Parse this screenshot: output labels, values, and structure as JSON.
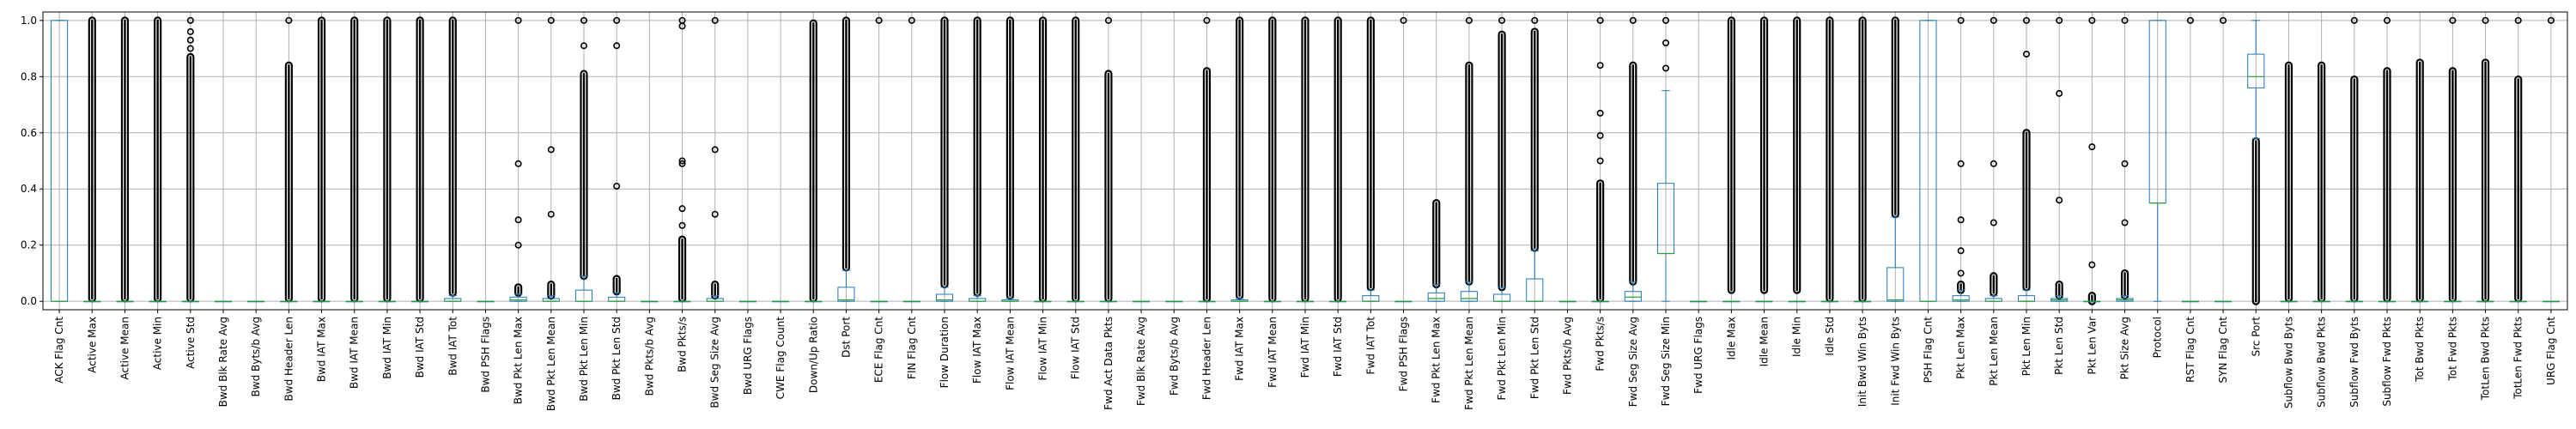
{
  "chart_data": {
    "type": "boxplot",
    "title": "",
    "xlabel": "",
    "ylabel": "",
    "ylim": [
      -0.03,
      1.03
    ],
    "yticks": [
      "0.0",
      "0.2",
      "0.4",
      "0.6",
      "0.8",
      "1.0"
    ],
    "ytick_values": [
      0.0,
      0.2,
      0.4,
      0.6,
      0.8,
      1.0
    ],
    "grid": true,
    "colors": {
      "box": "#1f77b4",
      "median": "#2ca02c",
      "outlier": "#000000",
      "grid": "#b0b0b0"
    },
    "boxes": [
      {
        "label": "ACK Flag Cnt",
        "q1": 0,
        "q3": 1,
        "med": 0,
        "wlo": 0,
        "whi": 1
      },
      {
        "label": "Active Max",
        "q1": 0,
        "q3": 0,
        "med": 0,
        "wlo": 0,
        "whi": 0,
        "band": [
          0.01,
          1.0
        ]
      },
      {
        "label": "Active Mean",
        "q1": 0,
        "q3": 0,
        "med": 0,
        "wlo": 0,
        "whi": 0,
        "band": [
          0.01,
          1.0
        ]
      },
      {
        "label": "Active Min",
        "q1": 0,
        "q3": 0,
        "med": 0,
        "wlo": 0,
        "whi": 0,
        "band": [
          0.01,
          1.0
        ]
      },
      {
        "label": "Active Std",
        "q1": 0,
        "q3": 0,
        "med": 0,
        "wlo": 0,
        "whi": 0,
        "band": [
          0.01,
          0.87
        ],
        "points": [
          0.9,
          0.93,
          0.96,
          1.0
        ]
      },
      {
        "label": "Bwd Blk Rate Avg",
        "q1": 0,
        "q3": 0,
        "med": 0,
        "wlo": 0,
        "whi": 0
      },
      {
        "label": "Bwd Byts/b Avg",
        "q1": 0,
        "q3": 0,
        "med": 0,
        "wlo": 0,
        "whi": 0
      },
      {
        "label": "Bwd Header Len",
        "q1": 0,
        "q3": 0,
        "med": 0,
        "wlo": 0,
        "whi": 0,
        "band": [
          0.01,
          0.84
        ],
        "points": [
          1.0
        ]
      },
      {
        "label": "Bwd IAT Max",
        "q1": 0,
        "q3": 0,
        "med": 0,
        "wlo": 0,
        "whi": 0,
        "band": [
          0.01,
          1.0
        ]
      },
      {
        "label": "Bwd IAT Mean",
        "q1": 0,
        "q3": 0,
        "med": 0,
        "wlo": 0,
        "whi": 0,
        "band": [
          0.01,
          1.0
        ]
      },
      {
        "label": "Bwd IAT Min",
        "q1": 0,
        "q3": 0,
        "med": 0,
        "wlo": 0,
        "whi": 0,
        "band": [
          0.01,
          1.0
        ]
      },
      {
        "label": "Bwd IAT Std",
        "q1": 0,
        "q3": 0,
        "med": 0,
        "wlo": 0,
        "whi": 0,
        "band": [
          0.01,
          1.0
        ]
      },
      {
        "label": "Bwd IAT Tot",
        "q1": 0,
        "q3": 0.01,
        "med": 0,
        "wlo": 0,
        "whi": 0.02,
        "band": [
          0.03,
          1.0
        ]
      },
      {
        "label": "Bwd PSH Flags",
        "q1": 0,
        "q3": 0,
        "med": 0,
        "wlo": 0,
        "whi": 0
      },
      {
        "label": "Bwd Pkt Len Max",
        "q1": 0,
        "q3": 0.015,
        "med": 0.005,
        "wlo": 0,
        "whi": 0.025,
        "band": [
          0.03,
          0.05
        ],
        "points": [
          0.2,
          0.29,
          0.49,
          1.0
        ]
      },
      {
        "label": "Bwd Pkt Len Mean",
        "q1": 0,
        "q3": 0.01,
        "med": 0,
        "wlo": 0,
        "whi": 0.02,
        "band": [
          0.02,
          0.06
        ],
        "points": [
          0.31,
          0.54,
          1.0
        ]
      },
      {
        "label": "Bwd Pkt Len Min",
        "q1": 0,
        "q3": 0.04,
        "med": 0,
        "wlo": 0,
        "whi": 0.09,
        "band": [
          0.09,
          0.81
        ],
        "points": [
          0.91,
          1.0
        ]
      },
      {
        "label": "Bwd Pkt Len Std",
        "q1": 0,
        "q3": 0.015,
        "med": 0,
        "wlo": 0,
        "whi": 0.03,
        "band": [
          0.035,
          0.08
        ],
        "points": [
          0.41,
          0.91,
          1.0
        ]
      },
      {
        "label": "Bwd Pkts/b Avg",
        "q1": 0,
        "q3": 0,
        "med": 0,
        "wlo": 0,
        "whi": 0
      },
      {
        "label": "Bwd Pkts/s",
        "q1": 0,
        "q3": 0,
        "med": 0,
        "wlo": 0,
        "whi": 0,
        "band": [
          0.01,
          0.22
        ],
        "points": [
          0.27,
          0.33,
          0.49,
          0.5,
          0.98,
          1.0
        ]
      },
      {
        "label": "Bwd Seg Size Avg",
        "q1": 0,
        "q3": 0.01,
        "med": 0,
        "wlo": 0,
        "whi": 0.02,
        "band": [
          0.02,
          0.06
        ],
        "points": [
          0.31,
          0.54,
          1.0
        ]
      },
      {
        "label": "Bwd URG Flags",
        "q1": 0,
        "q3": 0,
        "med": 0,
        "wlo": 0,
        "whi": 0
      },
      {
        "label": "CWE Flag Count",
        "q1": 0,
        "q3": 0,
        "med": 0,
        "wlo": 0,
        "whi": 0
      },
      {
        "label": "Down/Up Ratio",
        "q1": 0,
        "q3": 0,
        "med": 0,
        "wlo": 0,
        "whi": 0,
        "band": [
          0.01,
          0.99
        ]
      },
      {
        "label": "Dst Port",
        "q1": 0,
        "q3": 0.05,
        "med": 0.005,
        "wlo": 0,
        "whi": 0.11,
        "band": [
          0.12,
          1.0
        ]
      },
      {
        "label": "ECE Flag Cnt",
        "q1": 0,
        "q3": 0,
        "med": 0,
        "wlo": 0,
        "whi": 0,
        "points": [
          1.0
        ]
      },
      {
        "label": "FIN Flag Cnt",
        "q1": 0,
        "q3": 0,
        "med": 0,
        "wlo": 0,
        "whi": 0,
        "points": [
          1.0
        ]
      },
      {
        "label": "Flow Duration",
        "q1": 0,
        "q3": 0.025,
        "med": 0.005,
        "wlo": 0,
        "whi": 0.05,
        "band": [
          0.06,
          1.0
        ]
      },
      {
        "label": "Flow IAT Max",
        "q1": 0,
        "q3": 0.01,
        "med": 0,
        "wlo": 0,
        "whi": 0.02,
        "band": [
          0.03,
          1.0
        ]
      },
      {
        "label": "Flow IAT Mean",
        "q1": 0,
        "q3": 0.005,
        "med": 0,
        "wlo": 0,
        "whi": 0.01,
        "band": [
          0.02,
          1.0
        ]
      },
      {
        "label": "Flow IAT Min",
        "q1": 0,
        "q3": 0,
        "med": 0,
        "wlo": 0,
        "whi": 0,
        "band": [
          0.01,
          1.0
        ]
      },
      {
        "label": "Flow IAT Std",
        "q1": 0,
        "q3": 0,
        "med": 0,
        "wlo": 0,
        "whi": 0,
        "band": [
          0.01,
          1.0
        ]
      },
      {
        "label": "Fwd Act Data Pkts",
        "q1": 0,
        "q3": 0,
        "med": 0,
        "wlo": 0,
        "whi": 0,
        "band": [
          0.01,
          0.81
        ],
        "points": [
          1.0
        ]
      },
      {
        "label": "Fwd Blk Rate Avg",
        "q1": 0,
        "q3": 0,
        "med": 0,
        "wlo": 0,
        "whi": 0
      },
      {
        "label": "Fwd Byts/b Avg",
        "q1": 0,
        "q3": 0,
        "med": 0,
        "wlo": 0,
        "whi": 0
      },
      {
        "label": "Fwd Header Len",
        "q1": 0,
        "q3": 0,
        "med": 0,
        "wlo": 0,
        "whi": 0,
        "band": [
          0.01,
          0.82
        ],
        "points": [
          1.0
        ]
      },
      {
        "label": "Fwd IAT Max",
        "q1": 0,
        "q3": 0.005,
        "med": 0,
        "wlo": 0,
        "whi": 0.01,
        "band": [
          0.02,
          1.0
        ]
      },
      {
        "label": "Fwd IAT Mean",
        "q1": 0,
        "q3": 0,
        "med": 0,
        "wlo": 0,
        "whi": 0,
        "band": [
          0.01,
          1.0
        ]
      },
      {
        "label": "Fwd IAT Min",
        "q1": 0,
        "q3": 0,
        "med": 0,
        "wlo": 0,
        "whi": 0,
        "band": [
          0.01,
          1.0
        ]
      },
      {
        "label": "Fwd IAT Std",
        "q1": 0,
        "q3": 0,
        "med": 0,
        "wlo": 0,
        "whi": 0,
        "band": [
          0.01,
          1.0
        ]
      },
      {
        "label": "Fwd IAT Tot",
        "q1": 0,
        "q3": 0.02,
        "med": 0,
        "wlo": 0,
        "whi": 0.04,
        "band": [
          0.05,
          1.0
        ]
      },
      {
        "label": "Fwd PSH Flags",
        "q1": 0,
        "q3": 0,
        "med": 0,
        "wlo": 0,
        "whi": 0,
        "points": [
          1.0
        ]
      },
      {
        "label": "Fwd Pkt Len Max",
        "q1": 0,
        "q3": 0.03,
        "med": 0.01,
        "wlo": 0,
        "whi": 0.06,
        "band": [
          0.06,
          0.35
        ]
      },
      {
        "label": "Fwd Pkt Len Mean",
        "q1": 0,
        "q3": 0.035,
        "med": 0.01,
        "wlo": 0,
        "whi": 0.07,
        "band": [
          0.07,
          0.84
        ],
        "points": [
          1.0
        ]
      },
      {
        "label": "Fwd Pkt Len Min",
        "q1": 0,
        "q3": 0.025,
        "med": 0,
        "wlo": 0,
        "whi": 0.05,
        "band": [
          0.05,
          0.95
        ],
        "points": [
          1.0
        ]
      },
      {
        "label": "Fwd Pkt Len Std",
        "q1": 0,
        "q3": 0.08,
        "med": 0,
        "wlo": 0,
        "whi": 0.18,
        "band": [
          0.19,
          0.96
        ],
        "points": [
          1.0
        ]
      },
      {
        "label": "Fwd Pkts/b Avg",
        "q1": 0,
        "q3": 0,
        "med": 0,
        "wlo": 0,
        "whi": 0
      },
      {
        "label": "Fwd Pkts/s",
        "q1": 0,
        "q3": 0,
        "med": 0,
        "wlo": 0,
        "whi": 0,
        "band": [
          0.01,
          0.42
        ],
        "points": [
          0.5,
          0.59,
          0.67,
          0.84,
          1.0
        ]
      },
      {
        "label": "Fwd Seg Size Avg",
        "q1": 0,
        "q3": 0.035,
        "med": 0.015,
        "wlo": 0,
        "whi": 0.07,
        "band": [
          0.07,
          0.84
        ],
        "points": [
          1.0
        ]
      },
      {
        "label": "Fwd Seg Size Min",
        "q1": 0.17,
        "q3": 0.42,
        "med": 0.17,
        "wlo": 0,
        "whi": 0.75,
        "points": [
          0.83,
          0.92,
          1.0
        ]
      },
      {
        "label": "Fwd URG Flags",
        "q1": 0,
        "q3": 0,
        "med": 0,
        "wlo": 0,
        "whi": 0
      },
      {
        "label": "Idle Max",
        "q1": 0,
        "q3": 0,
        "med": 0,
        "wlo": 0,
        "whi": 0,
        "band": [
          0.04,
          1.0
        ]
      },
      {
        "label": "Idle Mean",
        "q1": 0,
        "q3": 0,
        "med": 0,
        "wlo": 0,
        "whi": 0,
        "band": [
          0.04,
          1.0
        ]
      },
      {
        "label": "Idle Min",
        "q1": 0,
        "q3": 0,
        "med": 0,
        "wlo": 0,
        "whi": 0,
        "band": [
          0.04,
          1.0
        ]
      },
      {
        "label": "Idle Std",
        "q1": 0,
        "q3": 0,
        "med": 0,
        "wlo": 0,
        "whi": 0,
        "band": [
          0.01,
          1.0
        ]
      },
      {
        "label": "Init Bwd Win Byts",
        "q1": 0,
        "q3": 0,
        "med": 0,
        "wlo": 0,
        "whi": 0,
        "band": [
          0.01,
          1.0
        ]
      },
      {
        "label": "Init Fwd Win Byts",
        "q1": 0,
        "q3": 0.12,
        "med": 0.005,
        "wlo": 0,
        "whi": 0.3,
        "band": [
          0.31,
          1.0
        ]
      },
      {
        "label": "PSH Flag Cnt",
        "q1": 0,
        "q3": 1,
        "med": 0,
        "wlo": 0,
        "whi": 1
      },
      {
        "label": "Pkt Len Max",
        "q1": 0,
        "q3": 0.02,
        "med": 0.005,
        "wlo": 0,
        "whi": 0.04,
        "band": [
          0.04,
          0.06
        ],
        "points": [
          0.1,
          0.18,
          0.29,
          0.49,
          1.0
        ]
      },
      {
        "label": "Pkt Len Mean",
        "q1": 0,
        "q3": 0.01,
        "med": 0,
        "wlo": 0,
        "whi": 0.02,
        "band": [
          0.03,
          0.09
        ],
        "points": [
          0.28,
          0.49,
          1.0
        ]
      },
      {
        "label": "Pkt Len Min",
        "q1": 0,
        "q3": 0.02,
        "med": 0,
        "wlo": 0,
        "whi": 0.04,
        "band": [
          0.05,
          0.6
        ],
        "points": [
          0.88,
          1.0
        ]
      },
      {
        "label": "Pkt Len Std",
        "q1": 0,
        "q3": 0.01,
        "med": 0.005,
        "wlo": 0,
        "whi": 0.02,
        "band": [
          0.02,
          0.06
        ],
        "points": [
          0.36,
          0.74,
          1.0
        ]
      },
      {
        "label": "Pkt Len Var",
        "q1": 0,
        "q3": 0,
        "med": 0,
        "wlo": 0,
        "whi": 0,
        "band": [
          0.0,
          0.02
        ],
        "points": [
          0.13,
          0.55,
          1.0
        ]
      },
      {
        "label": "Pkt Size Avg",
        "q1": 0,
        "q3": 0.01,
        "med": 0.005,
        "wlo": 0,
        "whi": 0.02,
        "band": [
          0.02,
          0.1
        ],
        "points": [
          0.28,
          0.49,
          1.0
        ]
      },
      {
        "label": "Protocol",
        "q1": 0.35,
        "q3": 1.0,
        "med": 0.35,
        "wlo": 0,
        "whi": 1.0
      },
      {
        "label": "RST Flag Cnt",
        "q1": 0,
        "q3": 0,
        "med": 0,
        "wlo": 0,
        "whi": 0,
        "points": [
          1.0
        ]
      },
      {
        "label": "SYN Flag Cnt",
        "q1": 0,
        "q3": 0,
        "med": 0,
        "wlo": 0,
        "whi": 0,
        "points": [
          1.0
        ]
      },
      {
        "label": "Src Port",
        "q1": 0.76,
        "q3": 0.88,
        "med": 0.8,
        "wlo": 0.58,
        "whi": 1.0,
        "band": [
          0.0,
          0.57
        ]
      },
      {
        "label": "Subflow Bwd Byts",
        "q1": 0,
        "q3": 0,
        "med": 0,
        "wlo": 0,
        "whi": 0,
        "band": [
          0.01,
          0.84
        ]
      },
      {
        "label": "Subflow Bwd Pkts",
        "q1": 0,
        "q3": 0,
        "med": 0,
        "wlo": 0,
        "whi": 0,
        "band": [
          0.01,
          0.84
        ]
      },
      {
        "label": "Subflow Fwd Byts",
        "q1": 0,
        "q3": 0,
        "med": 0,
        "wlo": 0,
        "whi": 0,
        "band": [
          0.01,
          0.79
        ],
        "points": [
          1.0
        ]
      },
      {
        "label": "Subflow Fwd Pkts",
        "q1": 0,
        "q3": 0,
        "med": 0,
        "wlo": 0,
        "whi": 0,
        "band": [
          0.01,
          0.82
        ],
        "points": [
          1.0
        ]
      },
      {
        "label": "Tot Bwd Pkts",
        "q1": 0,
        "q3": 0,
        "med": 0,
        "wlo": 0,
        "whi": 0,
        "band": [
          0.01,
          0.85
        ]
      },
      {
        "label": "Tot Fwd Pkts",
        "q1": 0,
        "q3": 0,
        "med": 0,
        "wlo": 0,
        "whi": 0,
        "band": [
          0.01,
          0.82
        ],
        "points": [
          1.0
        ]
      },
      {
        "label": "TotLen Bwd Pkts",
        "q1": 0,
        "q3": 0,
        "med": 0,
        "wlo": 0,
        "whi": 0,
        "band": [
          0.01,
          0.85
        ],
        "points": [
          1.0
        ]
      },
      {
        "label": "TotLen Fwd Pkts",
        "q1": 0,
        "q3": 0,
        "med": 0,
        "wlo": 0,
        "whi": 0,
        "band": [
          0.01,
          0.79
        ],
        "points": [
          1.0
        ]
      },
      {
        "label": "URG Flag Cnt",
        "q1": 0,
        "q3": 0,
        "med": 0,
        "wlo": 0,
        "whi": 0,
        "points": [
          1.0
        ]
      }
    ]
  }
}
